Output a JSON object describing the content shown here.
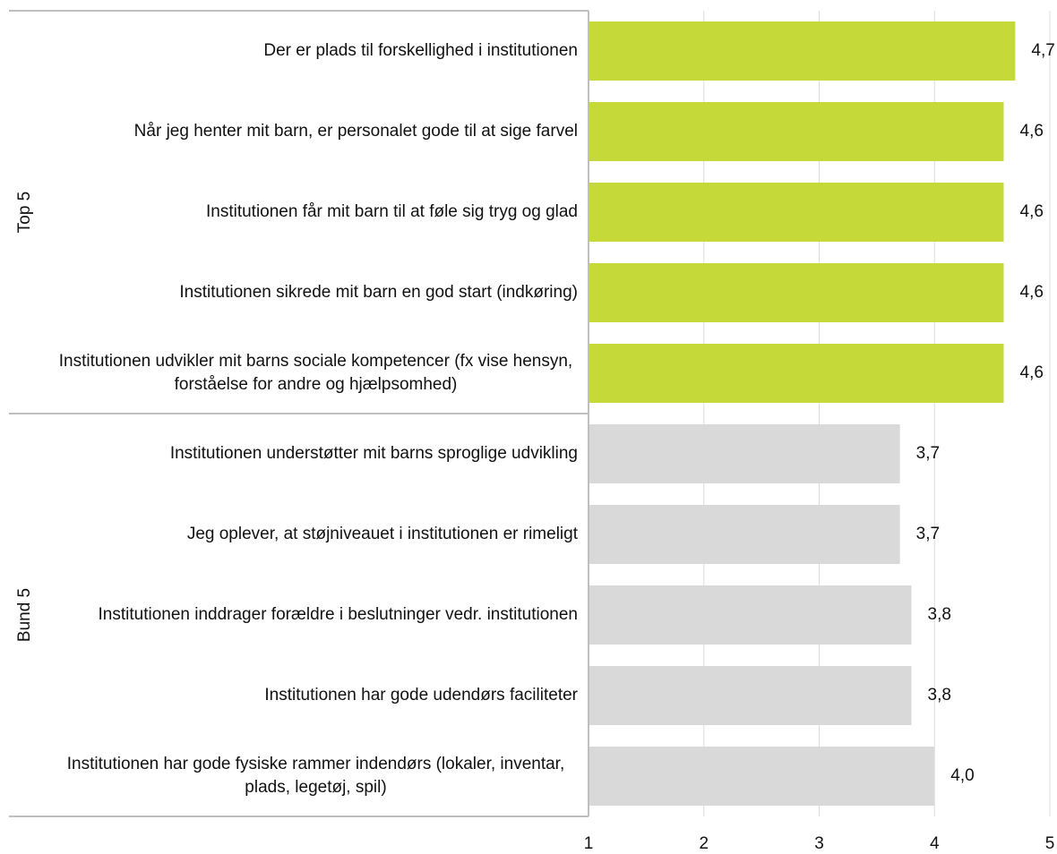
{
  "chart_data": {
    "type": "bar",
    "orientation": "horizontal",
    "series": [
      {
        "name": "Top 5",
        "color": "#c5d939",
        "categories": [
          "Der er plads til forskellighed i institutionen",
          "Når jeg henter mit barn, er personalet gode til at sige farvel",
          "Institutionen får mit barn til at føle sig tryg og glad",
          "Institutionen sikrede mit barn en god start (indkøring)",
          "Institutionen udvikler mit barns sociale kompetencer (fx vise hensyn, forståelse for andre og hjælpsomhed)"
        ],
        "values": [
          4.7,
          4.6,
          4.6,
          4.6,
          4.6
        ],
        "value_labels": [
          "4,7",
          "4,6",
          "4,6",
          "4,6",
          "4,6"
        ]
      },
      {
        "name": "Bund 5",
        "color": "#d9d9d9",
        "categories": [
          "Institutionen understøtter mit barns sproglige udvikling",
          "Jeg oplever, at støjniveauet i institutionen er rimeligt",
          "Institutionen inddrager forældre i beslutninger vedr. institutionen",
          "Institutionen har gode udendørs faciliteter",
          "Institutionen har gode fysiske rammer indendørs (lokaler, inventar, plads, legetøj, spil)"
        ],
        "values": [
          3.7,
          3.7,
          3.8,
          3.8,
          4.0
        ],
        "value_labels": [
          "3,7",
          "3,7",
          "3,8",
          "3,8",
          "4,0"
        ]
      }
    ],
    "xlim": [
      1,
      5
    ],
    "xticks": [
      1,
      2,
      3,
      4,
      5
    ],
    "grid": true
  }
}
